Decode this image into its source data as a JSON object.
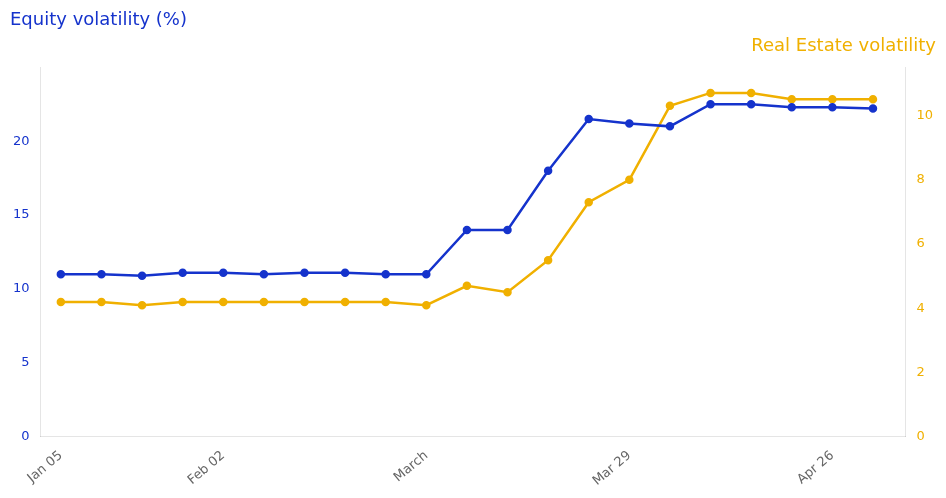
{
  "chart_data": {
    "type": "line",
    "title": "Equity volatility (%)",
    "subtitle": "Real Estate volatility",
    "x": [
      0,
      1,
      2,
      3,
      4,
      5,
      6,
      7,
      8,
      9,
      10,
      11,
      12,
      13,
      14,
      15,
      16,
      17,
      18,
      19,
      20
    ],
    "series": [
      {
        "color": "#1533cc",
        "axis": "y",
        "marker": "circle",
        "values": [
          11.0,
          11.0,
          10.9,
          11.1,
          11.1,
          11.0,
          11.1,
          11.1,
          11.0,
          11.0,
          14.0,
          14.0,
          18.0,
          21.5,
          21.2,
          21.0,
          22.5,
          22.5,
          22.3,
          22.3,
          22.2
        ]
      },
      {
        "color": "#f0b000",
        "axis": "y2",
        "marker": "circle",
        "values": [
          4.2,
          4.2,
          4.1,
          4.2,
          4.2,
          4.2,
          4.2,
          4.2,
          4.2,
          4.1,
          4.7,
          4.5,
          5.5,
          7.3,
          8.0,
          10.3,
          10.7,
          10.7,
          10.5,
          10.5,
          10.5
        ]
      }
    ],
    "xlim": [
      -0.5,
      20.8
    ],
    "xticks": [
      {
        "value": 0,
        "label": "Jan 05"
      },
      {
        "value": 4,
        "label": "Feb 02"
      },
      {
        "value": 9,
        "label": "March"
      },
      {
        "value": 14,
        "label": "Mar 29"
      },
      {
        "value": 19,
        "label": "Apr 26"
      }
    ],
    "ylim": [
      0,
      25
    ],
    "yticks": [
      0,
      5,
      10,
      15,
      20
    ],
    "y2lim": [
      0,
      11.5
    ],
    "y2ticks": [
      0,
      2,
      4,
      6,
      8,
      10
    ],
    "grid": false
  }
}
